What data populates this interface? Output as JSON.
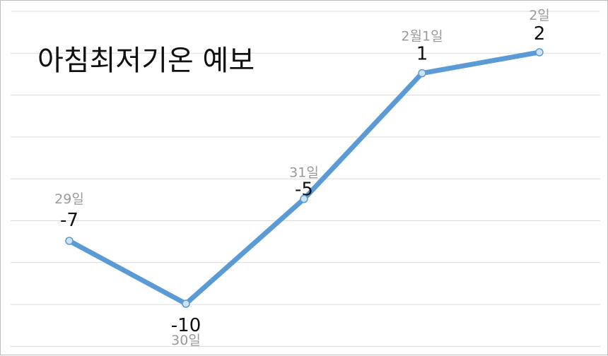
{
  "chart_data": {
    "type": "line",
    "title": "아침최저기온 예보",
    "categories": [
      "29일",
      "30일",
      "31일",
      "2월1일",
      "2일"
    ],
    "series": [
      {
        "values": [
          -7,
          -10,
          -5,
          1,
          2
        ]
      }
    ],
    "data_labels": [
      "-7",
      "-10",
      "-5",
      "1",
      "2"
    ],
    "ylim": [
      -10,
      2
    ],
    "grid": true,
    "legend": "none",
    "colors": {
      "line": "#5b9bd5",
      "marker_fill": "#cfe2f3",
      "marker_stroke": "#5b9bd5",
      "grid": "#dcdcdc"
    }
  }
}
